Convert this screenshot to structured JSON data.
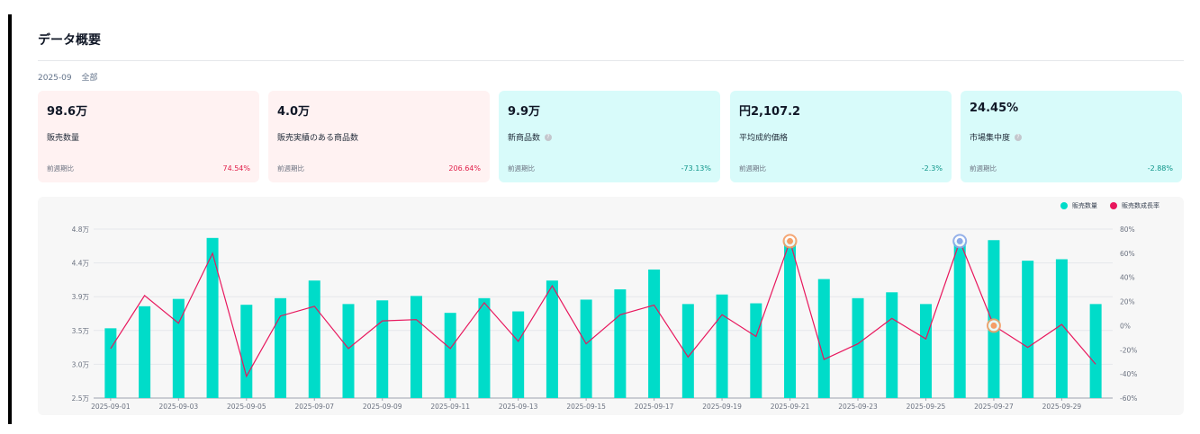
{
  "header": {
    "title": "データ概要"
  },
  "filter": {
    "month": "2025-09",
    "scope": "全部"
  },
  "cards": [
    {
      "value": "98.6万",
      "label": "販売数量",
      "has_info": false,
      "compare_label": "前週期比",
      "change": "74.54%",
      "tone": "pink"
    },
    {
      "value": "4.0万",
      "label": "販売実績のある商品数",
      "has_info": false,
      "compare_label": "前週期比",
      "change": "206.64%",
      "tone": "pink"
    },
    {
      "value": "9.9万",
      "label": "新商品数",
      "has_info": true,
      "compare_label": "前週期比",
      "change": "-73.13%",
      "tone": "cyan"
    },
    {
      "value": "円2,107.2",
      "label": "平均成約価格",
      "has_info": false,
      "compare_label": "前週期比",
      "change": "-2.3%",
      "tone": "cyan"
    },
    {
      "value": "24.45%",
      "label": "市場集中度",
      "has_info": true,
      "compare_label": "前週期比",
      "change": "-2.88%",
      "tone": "cyan"
    }
  ],
  "colors": {
    "bar": "#00dcc9",
    "line": "#e8175d",
    "marker_orange": "#f59e66",
    "marker_blue": "#8aa9e8"
  },
  "chart_data": {
    "type": "bar",
    "legend": [
      "販売数量",
      "販売数成長率"
    ],
    "legend_position": "top-right",
    "y_ticks_left": [
      "4.8万",
      "4.4万",
      "3.9万",
      "3.5万",
      "3.0万",
      "2.5万"
    ],
    "y_ticks_right": [
      "80%",
      "60%",
      "40%",
      "20%",
      "0%",
      "-20%",
      "-40%",
      "-60%"
    ],
    "x_tick_labels": [
      "2025-09-01",
      "2025-09-03",
      "2025-09-05",
      "2025-09-07",
      "2025-09-09",
      "2025-09-11",
      "2025-09-13",
      "2025-09-15",
      "2025-09-17",
      "2025-09-19",
      "2025-09-21",
      "2025-09-23",
      "2025-09-25",
      "2025-09-27",
      "2025-09-29"
    ],
    "ylim_left": [
      2.5,
      4.8
    ],
    "ylim_right": [
      -60,
      80
    ],
    "series": [
      {
        "name": "販売数量",
        "unit": "万",
        "values": [
          3.45,
          3.75,
          3.85,
          4.68,
          3.77,
          3.86,
          4.1,
          3.78,
          3.83,
          3.89,
          3.66,
          3.86,
          3.68,
          4.1,
          3.84,
          3.98,
          4.25,
          3.78,
          3.91,
          3.79,
          4.65,
          4.12,
          3.86,
          3.94,
          3.78,
          4.63,
          4.65,
          4.37,
          4.39,
          3.78
        ]
      },
      {
        "name": "販売数成長率",
        "unit": "%",
        "values": [
          -19,
          25,
          2,
          60,
          -42,
          8,
          16,
          -19,
          4,
          5,
          -19,
          19,
          -13,
          33,
          -15,
          9,
          17,
          -26,
          9,
          -9,
          70,
          -28,
          -15,
          6,
          -11,
          70,
          0,
          -18,
          1,
          -32
        ]
      }
    ],
    "markers": [
      {
        "index": 20,
        "color": "orange"
      },
      {
        "index": 25,
        "color": "blue"
      },
      {
        "index": 26,
        "color": "orange"
      }
    ]
  }
}
